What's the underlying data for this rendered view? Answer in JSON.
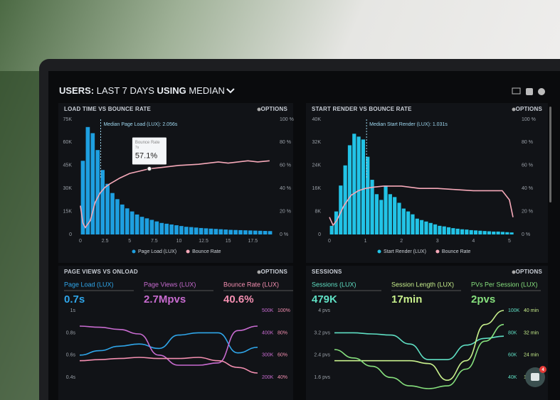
{
  "header": {
    "parts": [
      "USERS:",
      "LAST 7 DAYS",
      "USING",
      "MEDIAN"
    ]
  },
  "badge": "4",
  "chart_data": [
    {
      "type": "combo",
      "title": "LOAD TIME VS BOUNCE RATE",
      "options": "OPTIONS",
      "median": 2.056,
      "annotation": "Median Page Load (LUX): 2.056s",
      "xlim": [
        0,
        19.5
      ],
      "xticks": [
        0,
        2.5,
        5,
        7.5,
        10,
        12.5,
        15,
        17.5
      ],
      "ylim": [
        0,
        75000
      ],
      "yticks": [
        0,
        {
          "value": 15000,
          "label": "15K"
        },
        {
          "value": 30000,
          "label": "30K"
        },
        {
          "value": 45000,
          "label": "45K"
        },
        {
          "value": 60000,
          "label": "60K"
        },
        {
          "value": 75000,
          "label": "75K"
        }
      ],
      "y2lim": [
        0,
        100
      ],
      "y2ticks": [
        {
          "value": 0,
          "label": "0 %"
        },
        {
          "value": 20,
          "label": "20 %"
        },
        {
          "value": 40,
          "label": "40 %"
        },
        {
          "value": 60,
          "label": "60 %"
        },
        {
          "value": 80,
          "label": "80 %"
        },
        {
          "value": 100,
          "label": "100 %"
        }
      ],
      "tooltip": {
        "title": "Bounce Rate",
        "subtitle": "7s",
        "label": "57.1%",
        "x": 7,
        "value": 57.1
      },
      "series": [
        {
          "name": "Page Load (LUX)",
          "color": "#1e9fe0",
          "kind": "bar",
          "x": [
            0.25,
            0.75,
            1.25,
            1.75,
            2.25,
            2.75,
            3.25,
            3.75,
            4.25,
            4.75,
            5.25,
            5.75,
            6.25,
            6.75,
            7.25,
            7.75,
            8.25,
            8.75,
            9.25,
            9.75,
            10.25,
            10.75,
            11.25,
            11.75,
            12.25,
            12.75,
            13.25,
            13.75,
            14.25,
            14.75,
            15.25,
            15.75,
            16.25,
            16.75,
            17.25,
            17.75,
            18.25,
            18.75,
            19.25
          ],
          "values": [
            48000,
            70000,
            66000,
            55000,
            42000,
            33000,
            27000,
            23000,
            19500,
            17000,
            15000,
            13000,
            11500,
            10500,
            9500,
            8500,
            7500,
            7000,
            6500,
            6000,
            5500,
            5000,
            4800,
            4500,
            4200,
            4000,
            3800,
            3600,
            3400,
            3200,
            3000,
            2900,
            2800,
            2700,
            2600,
            2500,
            2400,
            2300,
            2200
          ]
        },
        {
          "name": "Bounce Rate",
          "color": "#f6a9b9",
          "kind": "line",
          "axis": "y2",
          "x": [
            0,
            0.25,
            0.5,
            1,
            1.5,
            2,
            2.5,
            3,
            4,
            5,
            6,
            7,
            8,
            10,
            12,
            14,
            15,
            16,
            17,
            18,
            19.2
          ],
          "values": [
            25,
            10,
            6,
            12,
            28,
            36,
            41,
            44,
            49,
            53,
            55,
            57.1,
            58,
            60,
            61,
            63,
            62,
            63,
            64,
            63,
            64
          ]
        }
      ]
    },
    {
      "type": "combo",
      "title": "START RENDER VS BOUNCE RATE",
      "options": "OPTIONS",
      "median": 1.031,
      "annotation": "Median Start Render (LUX): 1.031s",
      "xlim": [
        0,
        5.14
      ],
      "xticks": [
        0,
        1,
        2,
        3,
        4,
        5
      ],
      "ylim": [
        0,
        40000
      ],
      "yticks": [
        0,
        {
          "value": 8000,
          "label": "8K"
        },
        {
          "value": 16000,
          "label": "16K"
        },
        {
          "value": 24000,
          "label": "24K"
        },
        {
          "value": 32000,
          "label": "32K"
        },
        {
          "value": 40000,
          "label": "40K"
        }
      ],
      "y2lim": [
        0,
        100
      ],
      "y2ticks": [
        {
          "value": 0,
          "label": "0 %"
        },
        {
          "value": 20,
          "label": "20 %"
        },
        {
          "value": 40,
          "label": "40 %"
        },
        {
          "value": 60,
          "label": "60 %"
        },
        {
          "value": 80,
          "label": "80 %"
        },
        {
          "value": 100,
          "label": "100 %"
        }
      ],
      "series": [
        {
          "name": "Start Render (LUX)",
          "color": "#22c3e6",
          "kind": "bar",
          "x": [
            0.0625,
            0.1875,
            0.3125,
            0.4375,
            0.5625,
            0.6875,
            0.8125,
            0.9375,
            1.0625,
            1.1875,
            1.3125,
            1.4375,
            1.5625,
            1.6875,
            1.8125,
            1.9375,
            2.0625,
            2.1875,
            2.3125,
            2.4375,
            2.5625,
            2.6875,
            2.8125,
            2.9375,
            3.0625,
            3.1875,
            3.3125,
            3.4375,
            3.5625,
            3.6875,
            3.8125,
            3.9375,
            4.0625,
            4.1875,
            4.3125,
            4.4375,
            4.5625,
            4.6875,
            4.8125,
            4.9375,
            5.0625
          ],
          "values": [
            3000,
            8000,
            17000,
            24000,
            31000,
            35000,
            34000,
            33000,
            27000,
            19000,
            14000,
            12000,
            17000,
            14000,
            13000,
            11000,
            9000,
            8000,
            7000,
            5500,
            5000,
            4500,
            4000,
            3500,
            3000,
            2800,
            2500,
            2200,
            2000,
            1800,
            1700,
            1500,
            1400,
            1300,
            1200,
            1100,
            1000,
            1000,
            900,
            800,
            700
          ]
        },
        {
          "name": "Bounce Rate",
          "color": "#f6a9b9",
          "kind": "line",
          "axis": "y2",
          "x": [
            0,
            0.1,
            0.2,
            0.4,
            0.6,
            0.8,
            1,
            1.2,
            1.5,
            2,
            2.5,
            3,
            3.5,
            4,
            4.5,
            4.8,
            5,
            5.1
          ],
          "values": [
            15,
            8,
            12,
            25,
            34,
            38,
            40,
            41,
            42,
            42,
            40,
            40,
            39,
            38,
            38,
            38,
            30,
            15
          ]
        }
      ]
    },
    {
      "type": "line",
      "title": "PAGE VIEWS VS ONLOAD",
      "options": "OPTIONS",
      "ylim": [
        0.3,
        1
      ],
      "yticks": [
        {
          "value": 1,
          "label": "1s"
        },
        {
          "value": 0.8,
          "label": "0.8s"
        },
        {
          "value": 0.6,
          "label": "0.6s"
        },
        {
          "value": 0.4,
          "label": "0.4s"
        }
      ],
      "y2lim": [
        150000,
        500000
      ],
      "y2ticks": [
        {
          "value": 500000,
          "label": "500K"
        },
        {
          "value": 400000,
          "label": "400K"
        },
        {
          "value": 300000,
          "label": "300K"
        },
        {
          "value": 200000,
          "label": "200K"
        }
      ],
      "y3lim": [
        30,
        100
      ],
      "y3ticks": [
        {
          "value": 100,
          "label": "100%"
        },
        {
          "value": 80,
          "label": "80%"
        },
        {
          "value": 60,
          "label": "60%"
        },
        {
          "value": 40,
          "label": "40%"
        }
      ],
      "series": [
        {
          "name": "Page Load (LUX)",
          "summary": "0.7s",
          "color": "#2fa6ea",
          "axis": "y",
          "values": [
            0.6,
            0.64,
            0.68,
            0.7,
            0.66,
            0.78,
            0.8,
            0.8,
            0.62,
            0.67
          ]
        },
        {
          "name": "Page Views (LUX)",
          "summary": "2.7Mpvs",
          "color": "#c86bd0",
          "axis": "y2",
          "values": [
            430000,
            425000,
            415000,
            395000,
            300000,
            255000,
            255000,
            265000,
            410000,
            430000
          ]
        },
        {
          "name": "Bounce Rate (LUX)",
          "summary": "40.6%",
          "color": "#f48fb1",
          "axis": "y3",
          "values": [
            55,
            56,
            57,
            58,
            57,
            57,
            58,
            55,
            49,
            44
          ]
        }
      ]
    },
    {
      "type": "line",
      "title": "SESSIONS",
      "options": "OPTIONS",
      "ylim": [
        1.2,
        4
      ],
      "yticks": [
        {
          "value": 4,
          "label": "4 pvs"
        },
        {
          "value": 3.2,
          "label": "3.2 pvs"
        },
        {
          "value": 2.4,
          "label": "2.4 pvs"
        },
        {
          "value": 1.6,
          "label": "1.6 pvs"
        }
      ],
      "y2lim": [
        30000,
        100000
      ],
      "y2ticks": [
        {
          "value": 100000,
          "label": "100K"
        },
        {
          "value": 80000,
          "label": "80K"
        },
        {
          "value": 60000,
          "label": "60K"
        },
        {
          "value": 40000,
          "label": "40K"
        }
      ],
      "y3lim": [
        12,
        40
      ],
      "y3ticks": [
        {
          "value": 40,
          "label": "40 min"
        },
        {
          "value": 32,
          "label": "32 min"
        },
        {
          "value": 24,
          "label": "24 min"
        },
        {
          "value": 16,
          "label": "16 min"
        }
      ],
      "series": [
        {
          "name": "Sessions (LUX)",
          "summary": "479K",
          "color": "#5fe0c4",
          "axis": "y2",
          "values": [
            80000,
            80000,
            79000,
            78000,
            70000,
            56000,
            56000,
            69000,
            75000,
            77000
          ]
        },
        {
          "name": "Session Length (LUX)",
          "summary": "17min",
          "color": "#c8f08c",
          "axis": "y3",
          "values": [
            22,
            22,
            22,
            22,
            22,
            21,
            15,
            22,
            35,
            40
          ]
        },
        {
          "name": "PVs Per Session (LUX)",
          "summary": "2pvs",
          "color": "#86e07d",
          "axis": "y",
          "values": [
            2.6,
            2.3,
            2.0,
            1.6,
            1.3,
            1.2,
            1.3,
            1.9,
            2.9,
            3.5
          ]
        }
      ]
    }
  ]
}
